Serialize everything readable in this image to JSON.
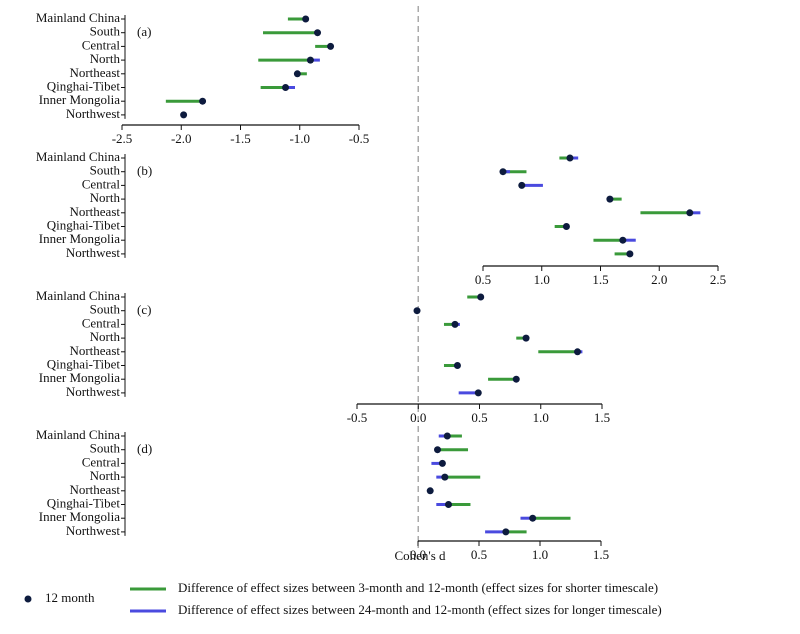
{
  "reference_x": 0,
  "legend": [
    {
      "name": "12 month",
      "color": "#0d1b3e"
    },
    {
      "name": "Difference of effect sizes between 3-month and 12-month (effect sizes for shorter timescale)",
      "color": "#3a9a3a"
    },
    {
      "name": "Difference of effect sizes between 24-month and 12-month (effect sizes for longer timescale)",
      "color": "#4a4adf"
    }
  ],
  "chart_data": [
    {
      "type": "dot_range",
      "panel_label": "(a)",
      "categories": [
        "Mainland China",
        "South",
        "Central",
        "North",
        "Northeast",
        "Qinghai-Tibet",
        "Inner Mongolia",
        "Northwest"
      ],
      "series": [
        {
          "values": [
            -0.95,
            -0.85,
            -0.74,
            -0.91,
            -1.02,
            -1.12,
            -1.82,
            -1.98
          ]
        },
        {
          "values": [
            -1.1,
            -1.31,
            -0.87,
            -1.35,
            -0.94,
            -1.33,
            -2.13,
            null
          ]
        },
        {
          "values": [
            null,
            -0.83,
            null,
            -0.83,
            null,
            -1.04,
            null,
            null
          ]
        }
      ],
      "xlim": [
        -2.5,
        -0.5
      ],
      "xticks": [
        {
          "value": -2.5,
          "label": "-2.5"
        },
        {
          "value": -2,
          "label": "-2.0"
        },
        {
          "value": -1.5,
          "label": "-1.5"
        },
        {
          "value": -1,
          "label": "-1.0"
        },
        -0.5
      ]
    },
    {
      "type": "dot_range",
      "panel_label": "(b)",
      "categories": [
        "Mainland China",
        "South",
        "Central",
        "North",
        "Northeast",
        "Qinghai-Tibet",
        "Inner Mongolia",
        "Northwest"
      ],
      "series": [
        {
          "values": [
            1.24,
            0.67,
            0.83,
            1.58,
            2.26,
            1.21,
            1.69,
            1.75
          ]
        },
        {
          "values": [
            1.15,
            0.87,
            0.86,
            1.68,
            1.84,
            1.11,
            1.44,
            1.62
          ]
        },
        {
          "values": [
            1.31,
            0.73,
            1.01,
            null,
            2.35,
            null,
            1.8,
            null
          ]
        }
      ],
      "xlim": [
        0.5,
        2.5
      ],
      "xticks": [
        0.5,
        {
          "value": 1,
          "label": "1.0"
        },
        1.5,
        {
          "value": 2,
          "label": "2.0"
        },
        2.5
      ]
    },
    {
      "type": "dot_range",
      "panel_label": "(c)",
      "categories": [
        "Mainland China",
        "South",
        "Central",
        "North",
        "Northeast",
        "Qinghai-Tibet",
        "Inner Mongolia",
        "Northwest"
      ],
      "series": [
        {
          "values": [
            0.51,
            -0.01,
            0.3,
            0.88,
            1.3,
            0.32,
            0.8,
            0.49
          ]
        },
        {
          "values": [
            0.4,
            null,
            0.21,
            0.8,
            0.98,
            0.21,
            0.57,
            null
          ]
        },
        {
          "values": [
            null,
            null,
            0.34,
            null,
            1.34,
            null,
            null,
            0.33
          ]
        }
      ],
      "xlim": [
        -0.5,
        1.5
      ],
      "xticks": [
        -0.5,
        {
          "value": 0,
          "label": "0.0"
        },
        0.5,
        {
          "value": 1,
          "label": "1.0"
        },
        1.5
      ]
    },
    {
      "type": "dot_range",
      "panel_label": "(d)",
      "x_label": "Cohen's d",
      "categories": [
        "Mainland China",
        "South",
        "Central",
        "North",
        "Northeast",
        "Qinghai-Tibet",
        "Inner Mongolia",
        "Northwest"
      ],
      "series": [
        {
          "values": [
            0.24,
            0.16,
            0.2,
            0.22,
            0.1,
            0.25,
            0.94,
            0.72
          ]
        },
        {
          "values": [
            0.36,
            0.41,
            null,
            0.51,
            null,
            0.43,
            1.25,
            0.89
          ]
        },
        {
          "values": [
            0.17,
            null,
            0.11,
            0.15,
            null,
            0.15,
            0.84,
            0.55
          ]
        }
      ],
      "xlim": [
        0,
        1.5
      ],
      "xticks": [
        {
          "value": 0,
          "label": "0.0"
        },
        0.5,
        {
          "value": 1,
          "label": "1.0"
        },
        1.5
      ]
    }
  ]
}
